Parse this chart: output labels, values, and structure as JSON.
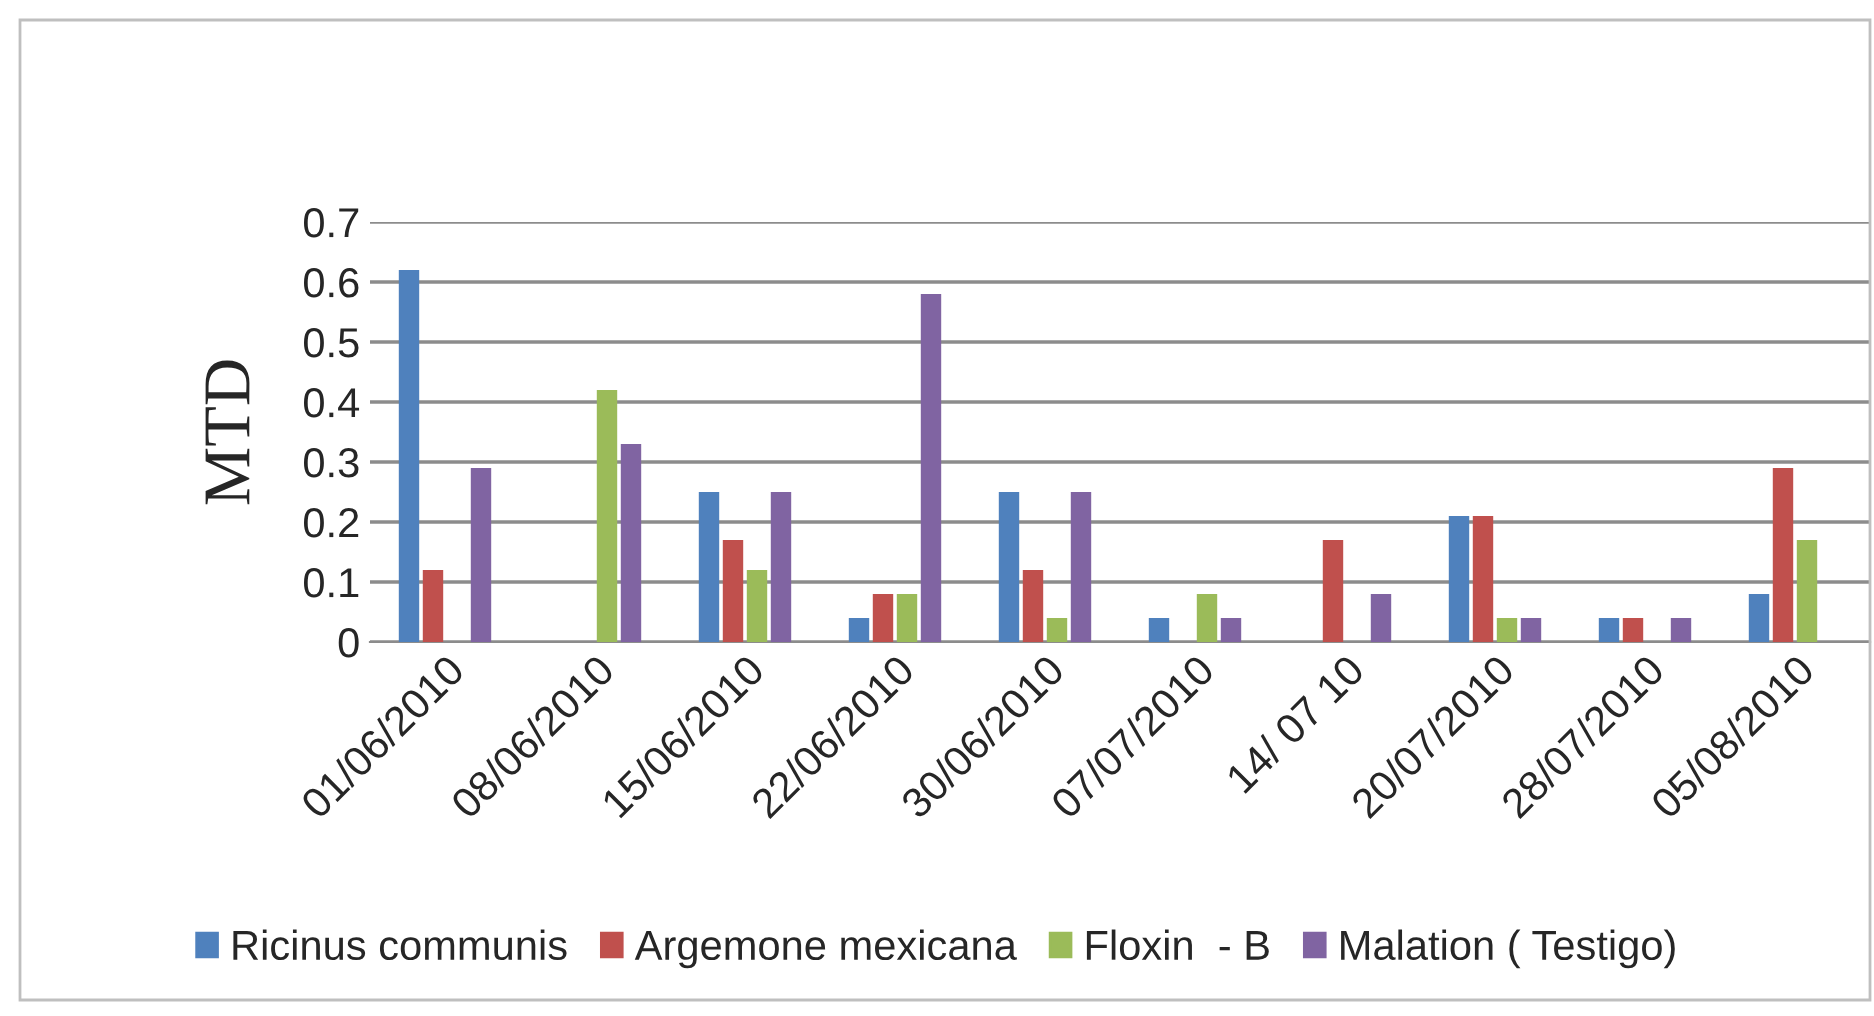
{
  "chart_data": {
    "type": "bar",
    "ylabel": "MTD",
    "categories": [
      "01/06/2010",
      "08/06/2010",
      "15/06/2010",
      "22/06/2010",
      "30/06/2010",
      "07/07/2010",
      "14/ 07 10",
      "20/07/2010",
      "28/07/2010",
      "05/08/2010"
    ],
    "series": [
      {
        "name": "Ricinus communis",
        "color": "#4f81bd",
        "values": [
          0.62,
          0,
          0.25,
          0.04,
          0.25,
          0.04,
          0,
          0.21,
          0.04,
          0.08
        ]
      },
      {
        "name": "Argemone mexicana",
        "color": "#c0504d",
        "values": [
          0.12,
          0,
          0.17,
          0.08,
          0.12,
          0,
          0.17,
          0.21,
          0.04,
          0.29
        ]
      },
      {
        "name": "Floxin  - B",
        "color": "#9bbb59",
        "values": [
          0,
          0.42,
          0.12,
          0.08,
          0.04,
          0.08,
          0,
          0.04,
          0,
          0.17
        ]
      },
      {
        "name": "Malation ( Testigo)",
        "color": "#8064a2",
        "values": [
          0.29,
          0.33,
          0.25,
          0.58,
          0.25,
          0.04,
          0.08,
          0.04,
          0.04,
          0
        ]
      }
    ],
    "ylim": [
      0,
      0.7
    ],
    "yticks": [
      0,
      0.1,
      0.2,
      0.3,
      0.4,
      0.5,
      0.6,
      0.7
    ],
    "grid": "y",
    "legend": "bottom"
  }
}
